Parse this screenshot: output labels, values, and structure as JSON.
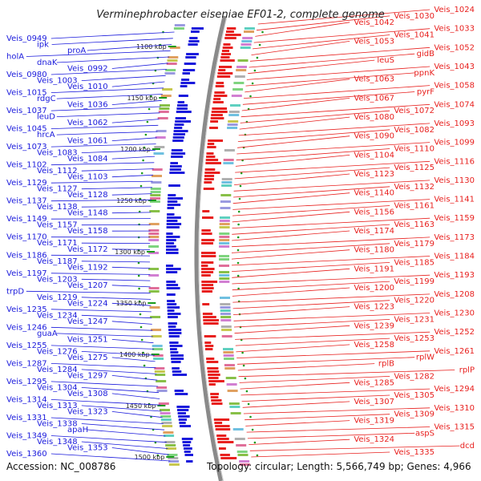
{
  "title": "Verminephrobacter eiseniae EF01-2, complete genome",
  "footer": {
    "accession": "Accession: NC_008786",
    "summary": "Topology: circular; Length: 5,566,749 bp; Genes: 4,966"
  },
  "colors": {
    "left": "#1a1adc",
    "right": "#e8201e",
    "backbone": "#8a8a8a",
    "tick": "#1a9a1a"
  },
  "ticks": [
    "1100 kbp",
    "1150 kbp",
    "1200 kbp",
    "1250 kbp",
    "1300 kbp",
    "1350 kbp",
    "1400 kbp",
    "1450 kbp",
    "1500 kbp"
  ],
  "left_labels": [
    "Veis_0949",
    "ipk",
    "proA",
    "holA",
    "dnaK",
    "Veis_0992",
    "Veis_0980",
    "Veis_1003",
    "Veis_1010",
    "Veis_1015",
    "rdgC",
    "Veis_1036",
    "Veis_1037",
    "leuD",
    "Veis_1062",
    "Veis_1045",
    "hrcA",
    "Veis_1061",
    "Veis_1073",
    "Veis_1083",
    "Veis_1084",
    "Veis_1102",
    "Veis_1112",
    "Veis_1103",
    "Veis_1129",
    "Veis_1127",
    "Veis_1128",
    "Veis_1137",
    "Veis_1138",
    "Veis_1148",
    "Veis_1149",
    "Veis_1157",
    "Veis_1158",
    "Veis_1170",
    "Veis_1171",
    "Veis_1172",
    "Veis_1186",
    "Veis_1187",
    "Veis_1192",
    "Veis_1197",
    "Veis_1203",
    "Veis_1207",
    "trpD",
    "Veis_1219",
    "Veis_1224",
    "Veis_1235",
    "Veis_1234",
    "Veis_1247",
    "Veis_1246",
    "guaA",
    "Veis_1251",
    "Veis_1255",
    "Veis_1276",
    "Veis_1275",
    "Veis_1287",
    "Veis_1284",
    "Veis_1297",
    "Veis_1295",
    "Veis_1304",
    "Veis_1308",
    "Veis_1314",
    "Veis_1313",
    "Veis_1323",
    "Veis_1331",
    "Veis_1338",
    "apaH",
    "Veis_1349",
    "Veis_1348",
    "Veis_1353",
    "Veis_1360"
  ],
  "right_labels": [
    "Veis_1024",
    "Veis_1030",
    "Veis_1042",
    "Veis_1033",
    "Veis_1041",
    "Veis_1053",
    "Veis_1052",
    "gidB",
    "leuS",
    "Veis_1043",
    "ppnK",
    "Veis_1063",
    "Veis_1058",
    "pyrF",
    "Veis_1067",
    "Veis_1074",
    "Veis_1072",
    "Veis_1080",
    "Veis_1093",
    "Veis_1082",
    "Veis_1090",
    "Veis_1099",
    "Veis_1110",
    "Veis_1104",
    "Veis_1116",
    "Veis_1125",
    "Veis_1123",
    "Veis_1130",
    "Veis_1132",
    "Veis_1140",
    "Veis_1141",
    "Veis_1161",
    "Veis_1156",
    "Veis_1159",
    "Veis_1163",
    "Veis_1174",
    "Veis_1173",
    "Veis_1179",
    "Veis_1180",
    "Veis_1184",
    "Veis_1185",
    "Veis_1191",
    "Veis_1193",
    "Veis_1199",
    "Veis_1200",
    "Veis_1208",
    "Veis_1220",
    "Veis_1223",
    "Veis_1230",
    "Veis_1231",
    "Veis_1239",
    "Veis_1252",
    "Veis_1253",
    "Veis_1258",
    "Veis_1261",
    "rplW",
    "rplB",
    "rplP",
    "Veis_1282",
    "Veis_1285",
    "Veis_1294",
    "Veis_1305",
    "Veis_1307",
    "Veis_1310",
    "Veis_1309",
    "Veis_1319",
    "Veis_1315",
    "aspS",
    "Veis_1324",
    "dcd",
    "Veis_1335"
  ]
}
